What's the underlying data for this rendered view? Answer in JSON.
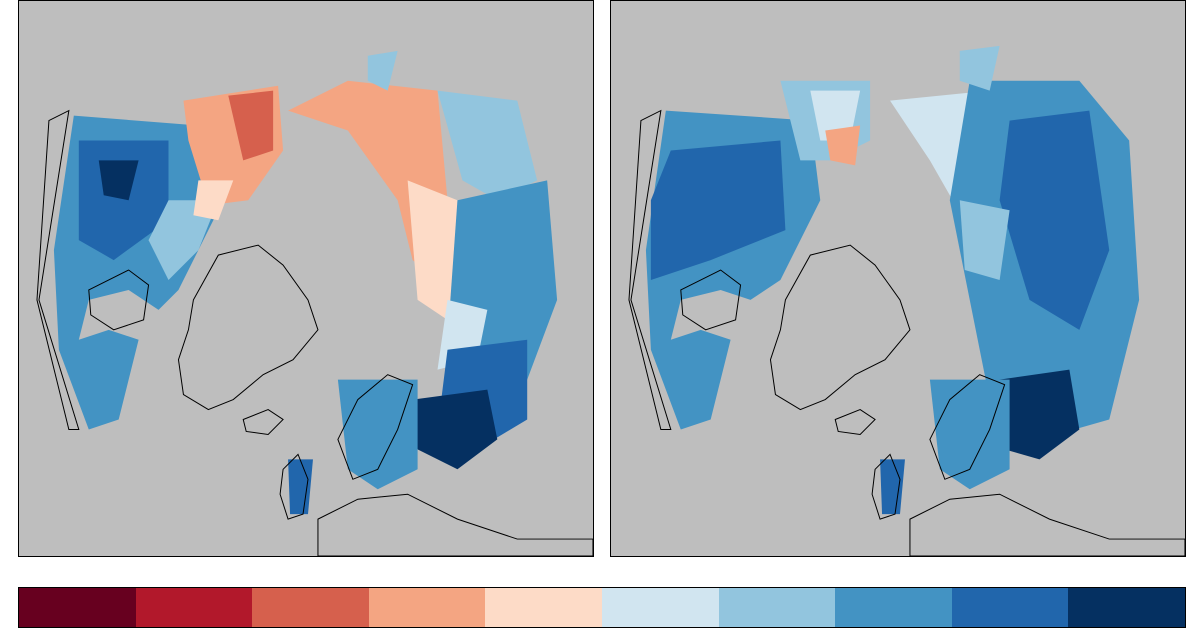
{
  "colorbar": {
    "colors": [
      "#67001f",
      "#b2182b",
      "#d6604d",
      "#f4a582",
      "#fddbc7",
      "#d1e5f0",
      "#92c5de",
      "#4393c3",
      "#2166ac",
      "#053061"
    ]
  },
  "map": {
    "background_color": "#bebebe",
    "coastline_color": "#000000",
    "projection": "north-polar-stereographic",
    "panels": [
      "left",
      "right"
    ]
  }
}
